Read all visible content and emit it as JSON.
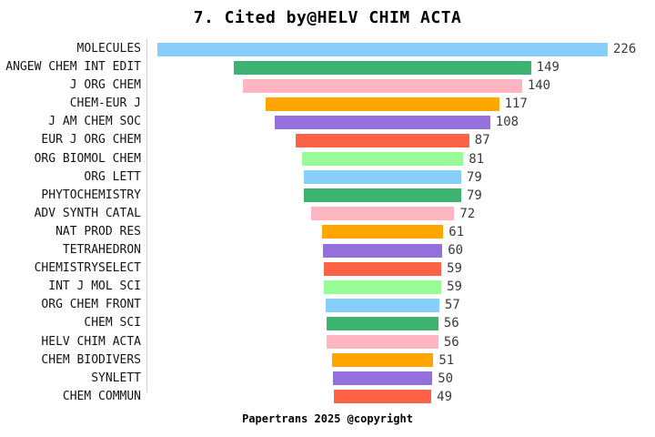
{
  "title": "7. Cited by@HELV CHIM ACTA",
  "footer": "Papertrans 2025 @copyright",
  "colors": {
    "background": "#ffffff",
    "axis_line": "#cfcfcf",
    "category_text": "#141414",
    "value_text": "#3a3a3a",
    "title_text": "#000000"
  },
  "chart_data": {
    "type": "bar",
    "subtype": "horizontal-centered-funnel",
    "title": "7. Cited by@HELV CHIM ACTA",
    "xlabel": "",
    "ylabel": "",
    "xlim": [
      0,
      226
    ],
    "grid": false,
    "legend": "none",
    "value_labels": "end-of-bar",
    "categories": [
      "MOLECULES",
      "ANGEW CHEM INT EDIT",
      "J ORG CHEM",
      "CHEM-EUR J",
      "J AM CHEM SOC",
      "EUR J ORG CHEM",
      "ORG BIOMOL CHEM",
      "ORG LETT",
      "PHYTOCHEMISTRY",
      "ADV SYNTH CATAL",
      "NAT PROD RES",
      "TETRAHEDRON",
      "CHEMISTRYSELECT",
      "INT J MOL SCI",
      "ORG CHEM FRONT",
      "CHEM SCI",
      "HELV CHIM ACTA",
      "CHEM BIODIVERS",
      "SYNLETT",
      "CHEM COMMUN"
    ],
    "values": [
      226,
      149,
      140,
      117,
      108,
      87,
      81,
      79,
      79,
      72,
      61,
      60,
      59,
      59,
      57,
      56,
      56,
      51,
      50,
      49
    ],
    "palette": [
      "#87CEFA",
      "#3CB371",
      "#FFB6C1",
      "#FFA500",
      "#9370DB",
      "#FF6347",
      "#98FB98"
    ]
  }
}
